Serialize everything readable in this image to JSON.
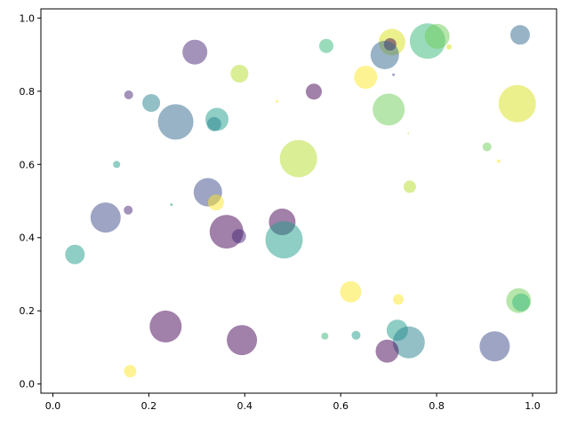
{
  "chart_data": {
    "type": "scatter",
    "title": "",
    "xlabel": "",
    "ylabel": "",
    "xlim": [
      -0.025,
      1.05
    ],
    "ylim": [
      -0.025,
      1.025
    ],
    "xticks": [
      0.0,
      0.2,
      0.4,
      0.6,
      0.8,
      1.0
    ],
    "yticks": [
      0.0,
      0.2,
      0.4,
      0.6,
      0.8,
      1.0
    ],
    "xtick_labels": [
      "0.0",
      "0.2",
      "0.4",
      "0.6",
      "0.8",
      "1.0"
    ],
    "ytick_labels": [
      "0.0",
      "0.2",
      "0.4",
      "0.6",
      "0.8",
      "1.0"
    ],
    "grid": false,
    "alpha": 0.5,
    "colormap": "viridis",
    "points": [
      {
        "x": 0.296,
        "y": 0.907,
        "r": 14,
        "color": "#482878"
      },
      {
        "x": 0.158,
        "y": 0.79,
        "r": 5,
        "color": "#482878"
      },
      {
        "x": 0.205,
        "y": 0.768,
        "r": 10,
        "color": "#26828e"
      },
      {
        "x": 0.256,
        "y": 0.716,
        "r": 20,
        "color": "#31688e"
      },
      {
        "x": 0.342,
        "y": 0.723,
        "r": 13,
        "color": "#1f9e89"
      },
      {
        "x": 0.336,
        "y": 0.71,
        "r": 8,
        "color": "#26828e"
      },
      {
        "x": 0.389,
        "y": 0.848,
        "r": 10,
        "color": "#b5de2b"
      },
      {
        "x": 0.467,
        "y": 0.772,
        "r": 1.5,
        "color": "#fde725"
      },
      {
        "x": 0.544,
        "y": 0.799,
        "r": 9,
        "color": "#440154"
      },
      {
        "x": 0.57,
        "y": 0.924,
        "r": 8,
        "color": "#35b779"
      },
      {
        "x": 0.652,
        "y": 0.838,
        "r": 13,
        "color": "#fde725"
      },
      {
        "x": 0.707,
        "y": 0.934,
        "r": 15,
        "color": "#d8e219"
      },
      {
        "x": 0.703,
        "y": 0.928,
        "r": 7,
        "color": "#440154"
      },
      {
        "x": 0.692,
        "y": 0.899,
        "r": 16,
        "color": "#31688e"
      },
      {
        "x": 0.71,
        "y": 0.845,
        "r": 1.5,
        "color": "#3e4989"
      },
      {
        "x": 0.781,
        "y": 0.937,
        "r": 20,
        "color": "#35b779"
      },
      {
        "x": 0.801,
        "y": 0.95,
        "r": 14,
        "color": "#6ece58"
      },
      {
        "x": 0.826,
        "y": 0.921,
        "r": 3,
        "color": "#d8e219"
      },
      {
        "x": 0.974,
        "y": 0.954,
        "r": 11,
        "color": "#31688e"
      },
      {
        "x": 0.7,
        "y": 0.75,
        "r": 18,
        "color": "#6ece58"
      },
      {
        "x": 0.968,
        "y": 0.766,
        "r": 21,
        "color": "#d8e219"
      },
      {
        "x": 0.741,
        "y": 0.685,
        "r": 1,
        "color": "#b5de2b"
      },
      {
        "x": 0.512,
        "y": 0.616,
        "r": 21,
        "color": "#b5de2b"
      },
      {
        "x": 0.905,
        "y": 0.648,
        "r": 5,
        "color": "#6ece58"
      },
      {
        "x": 0.929,
        "y": 0.609,
        "r": 2,
        "color": "#fde725"
      },
      {
        "x": 0.744,
        "y": 0.539,
        "r": 7,
        "color": "#b5de2b"
      },
      {
        "x": 0.133,
        "y": 0.6,
        "r": 4,
        "color": "#1f9e89"
      },
      {
        "x": 0.323,
        "y": 0.524,
        "r": 16,
        "color": "#3e4989"
      },
      {
        "x": 0.34,
        "y": 0.496,
        "r": 9,
        "color": "#fde725"
      },
      {
        "x": 0.247,
        "y": 0.49,
        "r": 1.5,
        "color": "#1f9e89"
      },
      {
        "x": 0.11,
        "y": 0.455,
        "r": 17,
        "color": "#3e4989"
      },
      {
        "x": 0.157,
        "y": 0.475,
        "r": 5,
        "color": "#482878"
      },
      {
        "x": 0.362,
        "y": 0.416,
        "r": 19,
        "color": "#440154"
      },
      {
        "x": 0.388,
        "y": 0.404,
        "r": 8,
        "color": "#482878"
      },
      {
        "x": 0.478,
        "y": 0.443,
        "r": 15,
        "color": "#440154"
      },
      {
        "x": 0.482,
        "y": 0.394,
        "r": 21,
        "color": "#1f9e89"
      },
      {
        "x": 0.046,
        "y": 0.354,
        "r": 11,
        "color": "#1f9e89"
      },
      {
        "x": 0.621,
        "y": 0.252,
        "r": 12,
        "color": "#fde725"
      },
      {
        "x": 0.72,
        "y": 0.231,
        "r": 6,
        "color": "#fde725"
      },
      {
        "x": 0.971,
        "y": 0.228,
        "r": 14,
        "color": "#6ece58"
      },
      {
        "x": 0.976,
        "y": 0.223,
        "r": 10,
        "color": "#35b779"
      },
      {
        "x": 0.235,
        "y": 0.157,
        "r": 18,
        "color": "#440154"
      },
      {
        "x": 0.394,
        "y": 0.12,
        "r": 17,
        "color": "#440154"
      },
      {
        "x": 0.567,
        "y": 0.131,
        "r": 4,
        "color": "#35b779"
      },
      {
        "x": 0.632,
        "y": 0.133,
        "r": 5,
        "color": "#1f9e89"
      },
      {
        "x": 0.718,
        "y": 0.147,
        "r": 12,
        "color": "#1f9e89"
      },
      {
        "x": 0.742,
        "y": 0.114,
        "r": 18,
        "color": "#26828e"
      },
      {
        "x": 0.697,
        "y": 0.09,
        "r": 13,
        "color": "#440154"
      },
      {
        "x": 0.921,
        "y": 0.103,
        "r": 17,
        "color": "#3e4989"
      },
      {
        "x": 0.161,
        "y": 0.035,
        "r": 7,
        "color": "#fde725"
      }
    ]
  }
}
